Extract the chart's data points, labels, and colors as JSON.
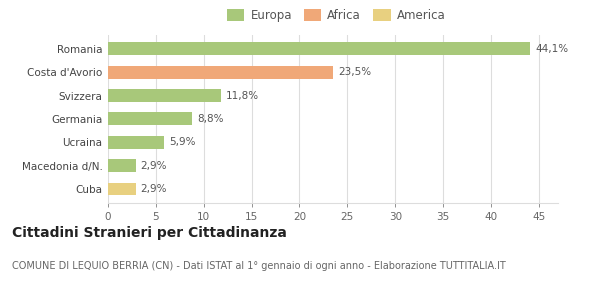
{
  "categories": [
    "Cuba",
    "Macedonia d/N.",
    "Ucraina",
    "Germania",
    "Svizzera",
    "Costa d'Avorio",
    "Romania"
  ],
  "values": [
    2.9,
    2.9,
    5.9,
    8.8,
    11.8,
    23.5,
    44.1
  ],
  "labels": [
    "2,9%",
    "2,9%",
    "5,9%",
    "8,8%",
    "11,8%",
    "23,5%",
    "44,1%"
  ],
  "colors": [
    "#e8d080",
    "#a8c87a",
    "#a8c87a",
    "#a8c87a",
    "#a8c87a",
    "#f0a878",
    "#a8c87a"
  ],
  "legend": [
    {
      "label": "Europa",
      "color": "#a8c87a"
    },
    {
      "label": "Africa",
      "color": "#f0a878"
    },
    {
      "label": "America",
      "color": "#e8d080"
    }
  ],
  "xlim": [
    0,
    47
  ],
  "xticks": [
    0,
    5,
    10,
    15,
    20,
    25,
    30,
    35,
    40,
    45
  ],
  "title": "Cittadini Stranieri per Cittadinanza",
  "subtitle": "COMUNE DI LEQUIO BERRIA (CN) - Dati ISTAT al 1° gennaio di ogni anno - Elaborazione TUTTITALIA.IT",
  "bg_color": "#ffffff",
  "grid_color": "#dddddd",
  "bar_height": 0.55,
  "title_fontsize": 10,
  "subtitle_fontsize": 7,
  "label_fontsize": 7.5,
  "tick_fontsize": 7.5,
  "legend_fontsize": 8.5
}
